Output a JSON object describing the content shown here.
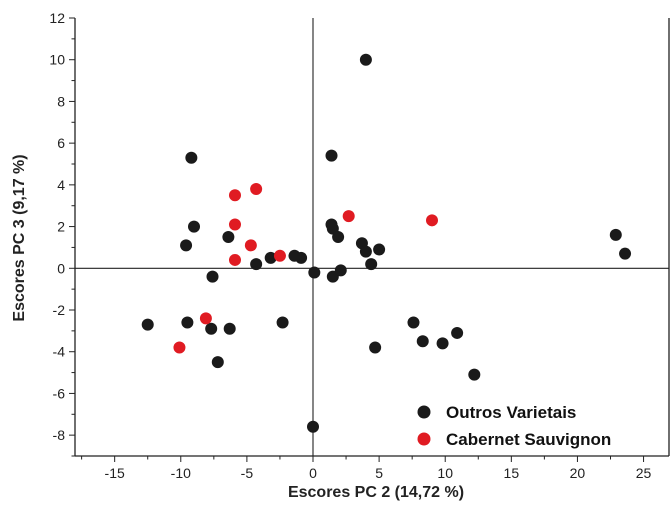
{
  "chart_data": {
    "type": "scatter",
    "xlabel": "Escores PC 2 (14,72 %)",
    "ylabel": "Escores PC 3 (9,17 %)",
    "xlim": [
      -18,
      27
    ],
    "ylim": [
      -9,
      12
    ],
    "xticks": [
      -15,
      -10,
      -5,
      0,
      5,
      10,
      15,
      20,
      25
    ],
    "yticks": [
      -8,
      -6,
      -4,
      -2,
      0,
      2,
      4,
      6,
      8,
      10,
      12
    ],
    "grid": false,
    "reference_lines": {
      "x": 0,
      "y": 0
    },
    "legend": {
      "position": "bottom-right"
    },
    "series": [
      {
        "name": "Outros Varietais",
        "color": "#1a1a1a",
        "points": [
          [
            -12.5,
            -2.7
          ],
          [
            -9.5,
            -2.6
          ],
          [
            -9.2,
            5.3
          ],
          [
            -9.0,
            2.0
          ],
          [
            -9.6,
            1.1
          ],
          [
            -7.6,
            -0.4
          ],
          [
            -7.7,
            -2.9
          ],
          [
            -7.2,
            -4.5
          ],
          [
            -6.3,
            -2.9
          ],
          [
            -6.4,
            1.5
          ],
          [
            -4.3,
            0.2
          ],
          [
            -3.2,
            0.5
          ],
          [
            -2.3,
            -2.6
          ],
          [
            -1.4,
            0.6
          ],
          [
            -0.9,
            0.5
          ],
          [
            0.1,
            -0.2
          ],
          [
            0.0,
            -7.6
          ],
          [
            1.4,
            5.4
          ],
          [
            1.4,
            2.1
          ],
          [
            1.5,
            1.9
          ],
          [
            1.5,
            -0.4
          ],
          [
            1.9,
            1.5
          ],
          [
            2.1,
            -0.1
          ],
          [
            3.7,
            1.2
          ],
          [
            4.0,
            10.0
          ],
          [
            4.0,
            0.8
          ],
          [
            4.4,
            0.2
          ],
          [
            5.0,
            0.9
          ],
          [
            4.7,
            -3.8
          ],
          [
            7.6,
            -2.6
          ],
          [
            8.3,
            -3.5
          ],
          [
            9.8,
            -3.6
          ],
          [
            10.9,
            -3.1
          ],
          [
            12.2,
            -5.1
          ],
          [
            22.9,
            1.6
          ],
          [
            23.6,
            0.7
          ]
        ]
      },
      {
        "name": "Cabernet Sauvignon",
        "color": "#e01b22",
        "points": [
          [
            -10.1,
            -3.8
          ],
          [
            -8.1,
            -2.4
          ],
          [
            -5.9,
            3.5
          ],
          [
            -5.9,
            2.1
          ],
          [
            -5.9,
            0.4
          ],
          [
            -4.7,
            1.1
          ],
          [
            -4.3,
            3.8
          ],
          [
            -2.5,
            0.6
          ],
          [
            2.7,
            2.5
          ],
          [
            9.0,
            2.3
          ]
        ]
      }
    ]
  }
}
